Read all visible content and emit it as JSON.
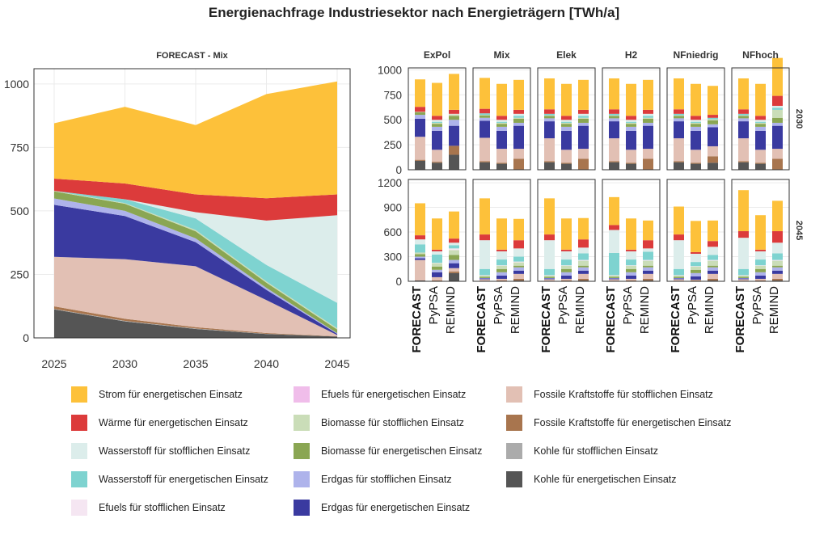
{
  "title": "Energienachfrage Industriesektor nach Energieträgern [TWh/a]",
  "colors": {
    "Strom für energetischen Einsatz": "#FDC13A",
    "Wärme für energetischen Einsatz": "#DC3B3B",
    "Wasserstoff für stofflichen Einsatz": "#DCEDEB",
    "Wasserstoff für energetischen Einsatz": "#7ED3D0",
    "Efuels für stofflichen Einsatz": "#F5E6F2",
    "Efuels für energetischen Einsatz": "#F0BDEA",
    "Biomasse für stofflichen Einsatz": "#CADDB8",
    "Biomasse für energetischen Einsatz": "#8AA653",
    "Erdgas für stofflichen Einsatz": "#AEB3EB",
    "Erdgas für energetischen Einsatz": "#3A3AA0",
    "Fossile Kraftstoffe für stofflichen Einsatz": "#E2C0B4",
    "Fossile Kraftstoffe für energetischen Einsatz": "#A8754E",
    "Kohle für stofflichen Einsatz": "#ABABAB",
    "Kohle für energetischen Einsatz": "#555555"
  },
  "legend": [
    "Strom für energetischen Einsatz",
    "Wärme für energetischen Einsatz",
    "Wasserstoff für stofflichen Einsatz",
    "Wasserstoff für energetischen Einsatz",
    "Efuels für stofflichen Einsatz",
    "Efuels für energetischen Einsatz",
    "Biomasse für stofflichen Einsatz",
    "Biomasse für energetischen Einsatz",
    "Erdgas für stofflichen Einsatz",
    "Erdgas für energetischen Einsatz",
    "Fossile Kraftstoffe für stofflichen Einsatz",
    "Fossile Kraftstoffe für energetischen Einsatz",
    "Kohle für stofflichen Einsatz",
    "Kohle für energetischen Einsatz"
  ],
  "chart_data": [
    {
      "type": "area",
      "title": "FORECAST - Mix",
      "x": [
        2025,
        2030,
        2035,
        2040,
        2045
      ],
      "xticks": [
        "2025",
        "2030",
        "2035",
        "2040",
        "2045"
      ],
      "yticks": [
        "0",
        "250",
        "500",
        "750",
        "1000"
      ],
      "ylim": [
        0,
        1060
      ],
      "grid": true,
      "stack_order": "bottom-to-top",
      "series": [
        {
          "name": "Kohle für energetischen Einsatz",
          "values": [
            112,
            65,
            35,
            15,
            5
          ]
        },
        {
          "name": "Kohle für stofflichen Einsatz",
          "values": [
            2,
            2,
            2,
            1,
            0
          ]
        },
        {
          "name": "Fossile Kraftstoffe für energetischen Einsatz",
          "values": [
            10,
            8,
            5,
            3,
            1
          ]
        },
        {
          "name": "Fossile Kraftstoffe für stofflichen Einsatz",
          "values": [
            195,
            235,
            240,
            130,
            5
          ]
        },
        {
          "name": "Erdgas für energetischen Einsatz",
          "values": [
            205,
            170,
            95,
            40,
            5
          ]
        },
        {
          "name": "Erdgas für stofflichen Einsatz",
          "values": [
            25,
            20,
            15,
            8,
            2
          ]
        },
        {
          "name": "Biomasse für energetischen Einsatz",
          "values": [
            28,
            28,
            28,
            20,
            15
          ]
        },
        {
          "name": "Biomasse für stofflichen Einsatz",
          "values": [
            2,
            3,
            5,
            5,
            5
          ]
        },
        {
          "name": "Efuels für energetischen Einsatz",
          "values": [
            0,
            0,
            0,
            0,
            0
          ]
        },
        {
          "name": "Efuels für stofflichen Einsatz",
          "values": [
            0,
            0,
            0,
            0,
            0
          ]
        },
        {
          "name": "Wasserstoff für energetischen Einsatz",
          "values": [
            0,
            15,
            45,
            65,
            100
          ]
        },
        {
          "name": "Wasserstoff für stofflichen Einsatz",
          "values": [
            0,
            0,
            25,
            175,
            345
          ]
        },
        {
          "name": "Wärme für energetischen Einsatz",
          "values": [
            48,
            62,
            70,
            88,
            82
          ]
        },
        {
          "name": "Strom für energetischen Einsatz",
          "values": [
            218,
            302,
            273,
            410,
            445
          ]
        }
      ]
    },
    {
      "type": "bar",
      "stacked": true,
      "facet_columns": [
        "ExPol",
        "Mix",
        "Elek",
        "H2",
        "NFniedrig",
        "NFhoch"
      ],
      "facet_rows": [
        "2030",
        "2045"
      ],
      "categories": [
        "FORECAST",
        "PyPSA",
        "REMIND"
      ],
      "yticks_2030": [
        "0",
        "250",
        "500",
        "750",
        "1000"
      ],
      "ylim_2030": [
        0,
        1020
      ],
      "yticks_2045": [
        "0",
        "300",
        "600",
        "900",
        "1200"
      ],
      "ylim_2045": [
        0,
        1240
      ],
      "grid": true,
      "stack_order": "bottom-to-top",
      "segment_series": [
        "Kohle für energetischen Einsatz",
        "Fossile Kraftstoffe für energetischen Einsatz",
        "Fossile Kraftstoffe für stofflichen Einsatz",
        "Erdgas für energetischen Einsatz",
        "Erdgas für stofflichen Einsatz",
        "Biomasse für energetischen Einsatz",
        "Biomasse für stofflichen Einsatz",
        "Efuels für stofflichen Einsatz",
        "Wasserstoff für energetischen Einsatz",
        "Wasserstoff für stofflichen Einsatz",
        "Wärme für energetischen Einsatz",
        "Strom für energetischen Einsatz"
      ],
      "values_2030": [
        [
          [
            90,
            10,
            230,
            180,
            40,
            25,
            5,
            0,
            0,
            0,
            50,
            275
          ],
          [
            70,
            10,
            120,
            190,
            40,
            30,
            10,
            0,
            10,
            20,
            40,
            330
          ],
          [
            150,
            90,
            0,
            200,
            60,
            40,
            15,
            5,
            0,
            0,
            40,
            360
          ]
        ],
        [
          [
            75,
            10,
            235,
            170,
            30,
            25,
            5,
            0,
            15,
            0,
            45,
            310
          ],
          [
            60,
            10,
            140,
            180,
            40,
            30,
            10,
            0,
            10,
            20,
            40,
            320
          ],
          [
            0,
            110,
            100,
            230,
            30,
            40,
            10,
            0,
            20,
            20,
            40,
            300
          ]
        ],
        [
          [
            75,
            10,
            230,
            170,
            30,
            25,
            5,
            0,
            15,
            0,
            45,
            310
          ],
          [
            60,
            10,
            130,
            190,
            40,
            30,
            10,
            0,
            10,
            20,
            40,
            320
          ],
          [
            0,
            110,
            100,
            230,
            30,
            40,
            10,
            0,
            20,
            20,
            40,
            300
          ]
        ],
        [
          [
            75,
            10,
            230,
            170,
            30,
            25,
            5,
            0,
            15,
            0,
            45,
            310
          ],
          [
            60,
            10,
            130,
            190,
            40,
            30,
            10,
            0,
            10,
            20,
            40,
            320
          ],
          [
            0,
            110,
            100,
            230,
            30,
            40,
            10,
            0,
            20,
            20,
            40,
            300
          ]
        ],
        [
          [
            75,
            10,
            230,
            170,
            30,
            25,
            5,
            0,
            15,
            0,
            45,
            310
          ],
          [
            60,
            10,
            130,
            190,
            40,
            30,
            10,
            0,
            10,
            20,
            40,
            320
          ],
          [
            70,
            65,
            100,
            190,
            30,
            40,
            10,
            0,
            15,
            0,
            30,
            290
          ]
        ],
        [
          [
            75,
            10,
            230,
            170,
            30,
            25,
            5,
            0,
            15,
            0,
            45,
            310
          ],
          [
            60,
            10,
            130,
            190,
            40,
            30,
            10,
            0,
            10,
            20,
            40,
            320
          ],
          [
            0,
            110,
            100,
            230,
            30,
            50,
            80,
            0,
            20,
            20,
            100,
            380
          ]
        ]
      ],
      "values_2045": [
        [
          [
            10,
            0,
            250,
            20,
            20,
            30,
            20,
            0,
            100,
            60,
            50,
            390
          ],
          [
            5,
            5,
            40,
            60,
            30,
            40,
            40,
            5,
            100,
            40,
            20,
            380
          ],
          [
            100,
            20,
            40,
            60,
            40,
            60,
            60,
            20,
            40,
            30,
            50,
            330
          ]
        ],
        [
          [
            5,
            0,
            20,
            10,
            5,
            15,
            15,
            5,
            75,
            350,
            70,
            440
          ],
          [
            5,
            5,
            20,
            40,
            40,
            40,
            40,
            5,
            70,
            100,
            20,
            380
          ],
          [
            10,
            20,
            60,
            40,
            40,
            20,
            40,
            10,
            60,
            100,
            100,
            260
          ]
        ],
        [
          [
            5,
            0,
            20,
            10,
            5,
            15,
            15,
            5,
            75,
            350,
            70,
            440
          ],
          [
            5,
            5,
            20,
            40,
            40,
            40,
            40,
            5,
            70,
            100,
            20,
            380
          ],
          [
            10,
            20,
            60,
            40,
            40,
            20,
            60,
            10,
            80,
            70,
            100,
            260
          ]
        ],
        [
          [
            5,
            0,
            20,
            10,
            5,
            15,
            15,
            5,
            270,
            280,
            60,
            340
          ],
          [
            5,
            5,
            20,
            40,
            40,
            40,
            40,
            5,
            70,
            100,
            20,
            380
          ],
          [
            10,
            20,
            60,
            40,
            40,
            20,
            60,
            10,
            100,
            40,
            100,
            240
          ]
        ],
        [
          [
            5,
            0,
            20,
            10,
            5,
            15,
            15,
            5,
            75,
            350,
            70,
            340
          ],
          [
            5,
            5,
            10,
            40,
            40,
            40,
            40,
            5,
            50,
            100,
            20,
            380
          ],
          [
            10,
            20,
            60,
            40,
            40,
            20,
            60,
            10,
            60,
            100,
            70,
            250
          ]
        ],
        [
          [
            5,
            0,
            20,
            10,
            5,
            15,
            15,
            5,
            75,
            380,
            80,
            500
          ],
          [
            5,
            5,
            20,
            40,
            40,
            40,
            40,
            5,
            70,
            100,
            20,
            420
          ],
          [
            10,
            20,
            60,
            40,
            40,
            20,
            60,
            10,
            80,
            130,
            140,
            370
          ]
        ]
      ]
    }
  ]
}
